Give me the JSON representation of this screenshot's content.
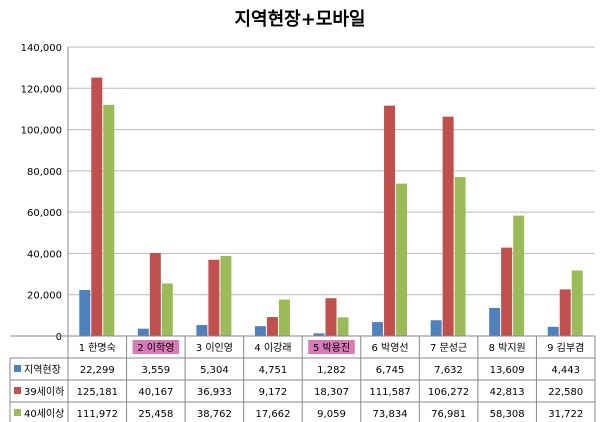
{
  "chart_data": {
    "type": "bar",
    "title": "지역현장+모바일",
    "xlabel": "",
    "ylabel": "",
    "ylim": [
      0,
      140000
    ],
    "yticks": [
      0,
      20000,
      40000,
      60000,
      80000,
      100000,
      120000,
      140000
    ],
    "ytick_labels": [
      "0",
      "20,000",
      "40,000",
      "60,000",
      "80,000",
      "100,000",
      "120,000",
      "140,000"
    ],
    "grid": "horizontal",
    "legend": "data-table",
    "categories": [
      "1 한명숙",
      "2 이학영",
      "3 이인영",
      "4 이강래",
      "5 박용진",
      "6 박영선",
      "7 문성근",
      "8 박지원",
      "9 김부겸"
    ],
    "highlighted_categories": [
      1,
      4
    ],
    "highlight_color": "#d87bb9",
    "series": [
      {
        "name": "지역현장",
        "color": "#4f81bd",
        "values": [
          22299,
          3559,
          5304,
          4751,
          1282,
          6745,
          7632,
          13609,
          4443
        ],
        "labels": [
          "22,299",
          "3,559",
          "5,304",
          "4,751",
          "1,282",
          "6,745",
          "7,632",
          "13,609",
          "4,443"
        ]
      },
      {
        "name": "39세이하",
        "color": "#c0504d",
        "values": [
          125181,
          40167,
          36933,
          9172,
          18307,
          111587,
          106272,
          42813,
          22580
        ],
        "labels": [
          "125,181",
          "40,167",
          "36,933",
          "9,172",
          "18,307",
          "111,587",
          "106,272",
          "42,813",
          "22,580"
        ]
      },
      {
        "name": "40세이상",
        "color": "#9bbb59",
        "values": [
          111972,
          25458,
          38762,
          17662,
          9059,
          73834,
          76981,
          58308,
          31722
        ],
        "labels": [
          "111,972",
          "25,458",
          "38,762",
          "17,662",
          "9,059",
          "73,834",
          "76,981",
          "58,308",
          "31,722"
        ]
      }
    ]
  }
}
